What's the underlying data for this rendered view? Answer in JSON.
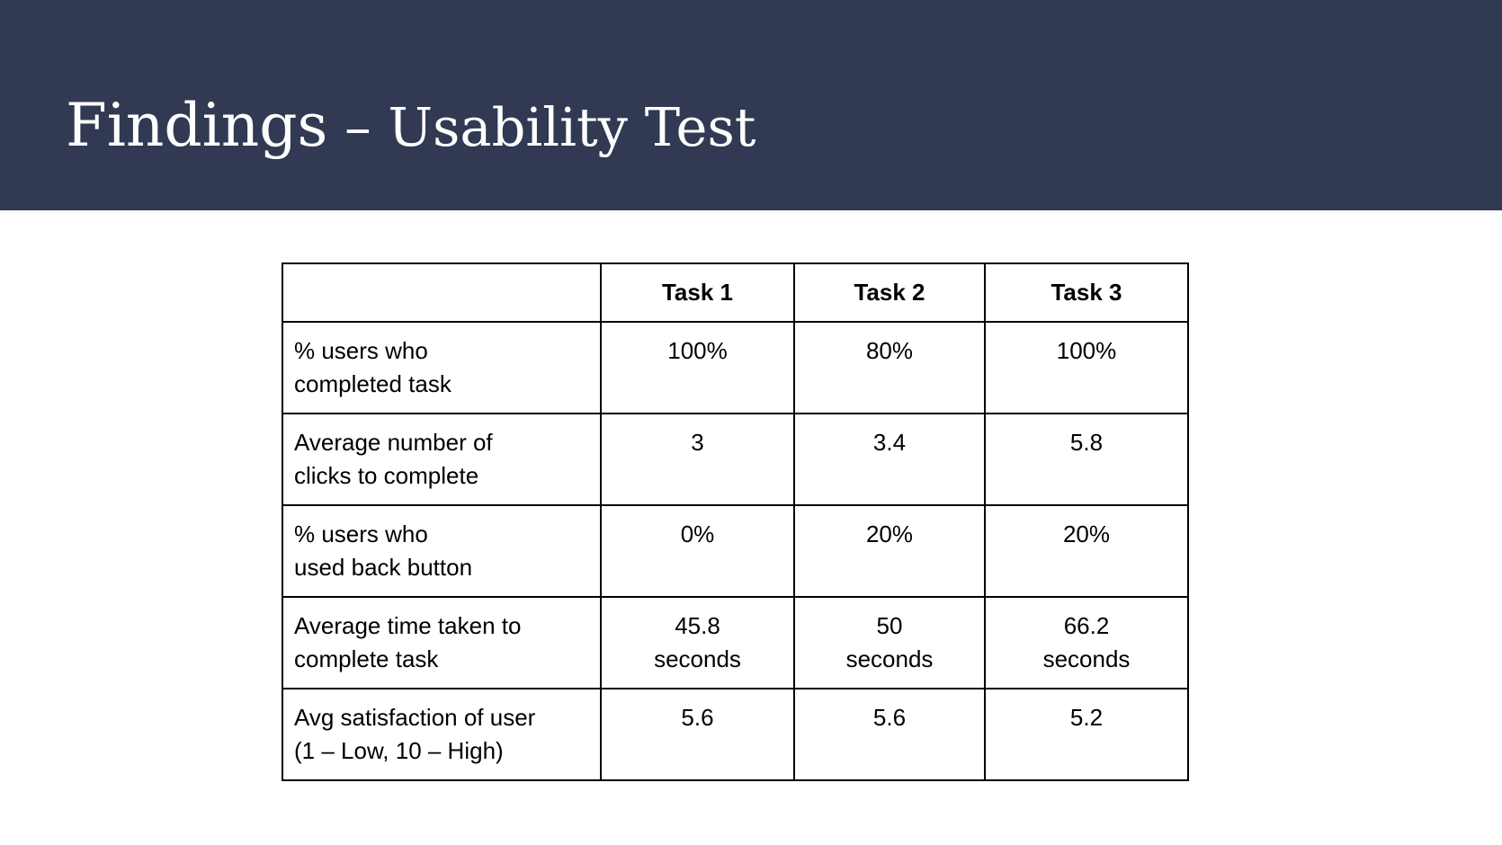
{
  "title": {
    "main": "Findings",
    "separator": " – ",
    "sub": "Usability Test"
  },
  "table": {
    "headers": [
      "",
      "Task 1",
      "Task 2",
      "Task 3"
    ],
    "rows": [
      {
        "metric": "% users who\ncompleted task",
        "values": [
          "100%",
          "80%",
          "100%"
        ]
      },
      {
        "metric": "Average number of\nclicks to complete",
        "values": [
          "3",
          "3.4",
          "5.8"
        ]
      },
      {
        "metric": "% users who\nused back button",
        "values": [
          "0%",
          "20%",
          "20%"
        ]
      },
      {
        "metric": "Average time taken to\ncomplete task",
        "values": [
          "45.8\nseconds",
          "50\nseconds",
          "66.2\nseconds"
        ]
      },
      {
        "metric": "Avg satisfaction of user\n(1 – Low, 10 – High)",
        "values": [
          "5.6",
          "5.6",
          "5.2"
        ]
      }
    ]
  },
  "colors": {
    "header_band": "#313a52",
    "title_text": "#ffffff"
  }
}
